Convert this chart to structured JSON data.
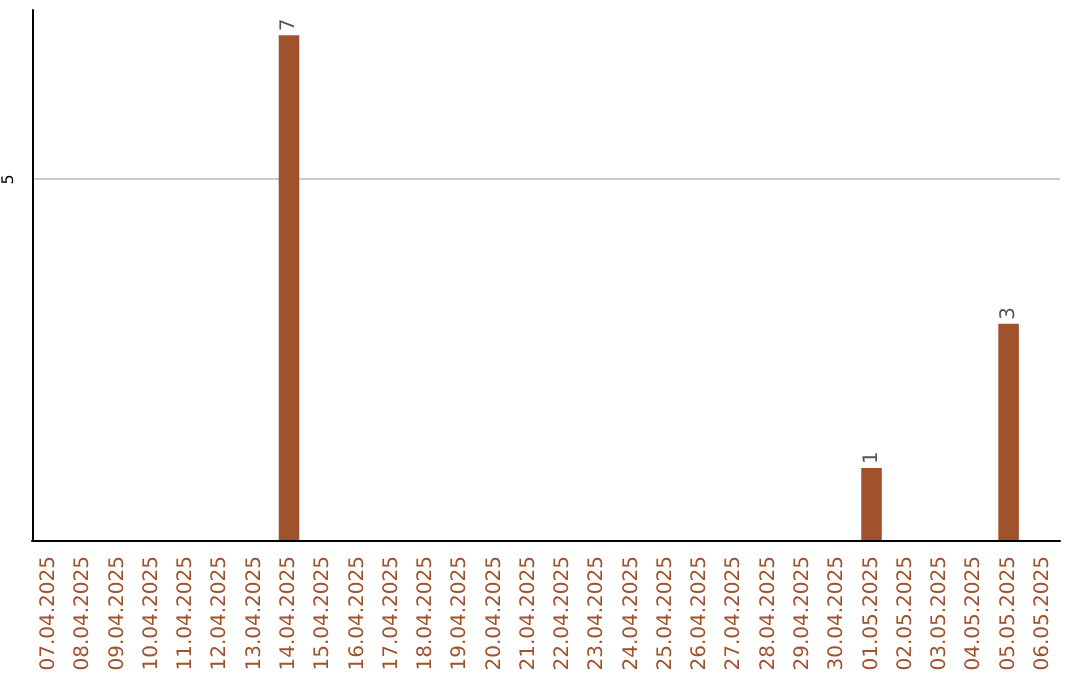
{
  "chart_data": {
    "type": "bar",
    "categories": [
      "07.04.2025",
      "08.04.2025",
      "09.04.2025",
      "10.04.2025",
      "11.04.2025",
      "12.04.2025",
      "13.04.2025",
      "14.04.2025",
      "15.04.2025",
      "16.04.2025",
      "17.04.2025",
      "18.04.2025",
      "19.04.2025",
      "20.04.2025",
      "21.04.2025",
      "22.04.2025",
      "23.04.2025",
      "24.04.2025",
      "25.04.2025",
      "26.04.2025",
      "27.04.2025",
      "28.04.2025",
      "29.04.2025",
      "30.04.2025",
      "01.05.2025",
      "02.05.2025",
      "03.05.2025",
      "04.05.2025",
      "05.05.2025",
      "06.05.2025"
    ],
    "values": [
      0,
      0,
      0,
      0,
      0,
      0,
      0,
      7,
      0,
      0,
      0,
      0,
      0,
      0,
      0,
      0,
      0,
      0,
      0,
      0,
      0,
      0,
      0,
      0,
      1,
      0,
      0,
      0,
      3,
      0
    ],
    "value_labels": [
      null,
      null,
      null,
      null,
      null,
      null,
      null,
      "7",
      null,
      null,
      null,
      null,
      null,
      null,
      null,
      null,
      null,
      null,
      null,
      null,
      null,
      null,
      null,
      null,
      "1",
      null,
      null,
      null,
      "3",
      null
    ],
    "color": "#a0522d",
    "ylim": [
      0,
      7.35
    ],
    "yticks": [
      5
    ],
    "grid": "y"
  }
}
